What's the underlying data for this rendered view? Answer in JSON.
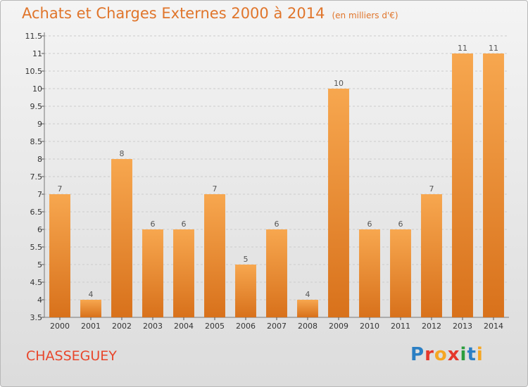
{
  "header": {
    "title": "Achats et Charges Externes 2000 à 2014",
    "subtitle": "(en milliers d'€)"
  },
  "footer": {
    "commune": "CHASSEGUEY",
    "brand_letters": [
      "P",
      "r",
      "o",
      "x",
      "i",
      "t",
      "i"
    ],
    "brand_colors": [
      "#2b7fc4",
      "#e5372b",
      "#f5a623",
      "#e5372b",
      "#2b9e3e",
      "#2b7fc4",
      "#f5a623"
    ]
  },
  "colors": {
    "bar_top": "#f7a74f",
    "bar_bottom": "#d8711b",
    "text_accent": "#e0752b",
    "grid": "#cccccc"
  },
  "chart_data": {
    "type": "bar",
    "title": "Achats et Charges Externes 2000 à 2014",
    "subtitle": "(en milliers d'€)",
    "categories": [
      "2000",
      "2001",
      "2002",
      "2003",
      "2004",
      "2005",
      "2006",
      "2007",
      "2008",
      "2009",
      "2010",
      "2011",
      "2012",
      "2013",
      "2014"
    ],
    "values": [
      7,
      4,
      8,
      6,
      6,
      7,
      5,
      6,
      4,
      10,
      6,
      6,
      7,
      11,
      11
    ],
    "value_labels": [
      "7",
      "4",
      "8",
      "6",
      "6",
      "7",
      "5",
      "6",
      "4",
      "10",
      "6",
      "6",
      "7",
      "11",
      "11"
    ],
    "yticks": [
      "3.5",
      "4",
      "4.5",
      "5",
      "5.5",
      "6",
      "6.5",
      "7",
      "7.5",
      "8",
      "8.5",
      "9",
      "9.5",
      "10",
      "10.5",
      "11",
      "11.5"
    ],
    "ylim": [
      3.5,
      11.5
    ],
    "grid": true,
    "xlabel": "",
    "ylabel": ""
  }
}
